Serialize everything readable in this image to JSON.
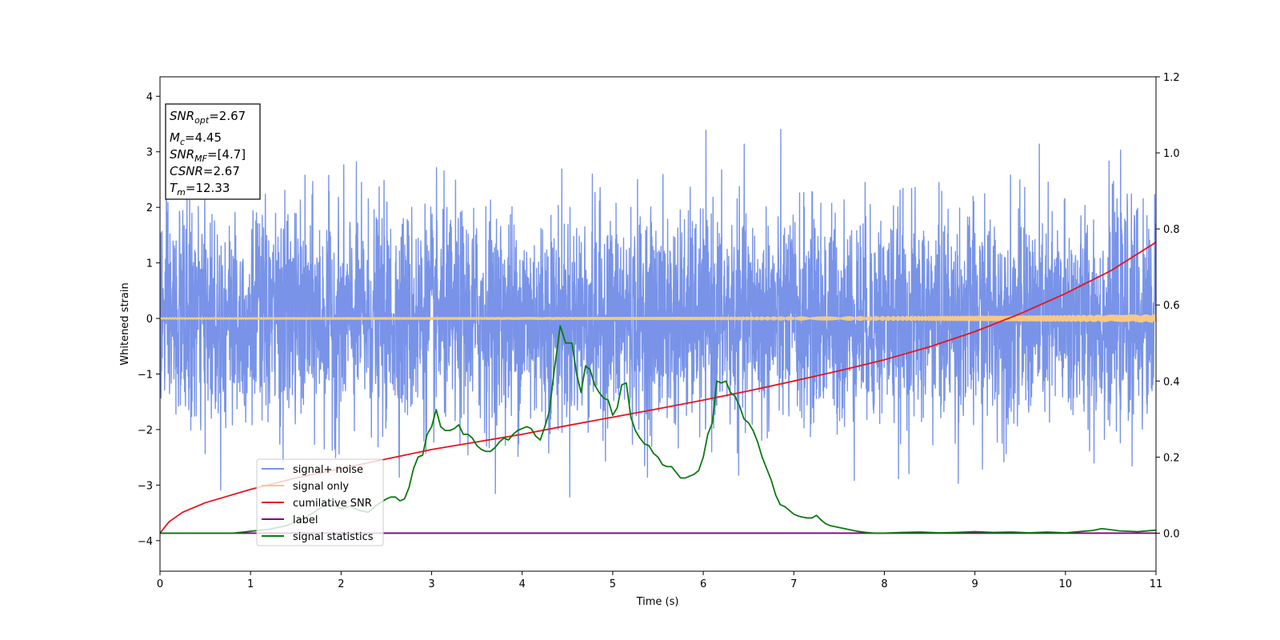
{
  "chart_data": {
    "type": "line",
    "title": "",
    "xlabel": "Time (s)",
    "ylabel": "Whitened strain",
    "y2label": "",
    "xlim": [
      0,
      11
    ],
    "ylim": [
      -4.55,
      4.35
    ],
    "y2lim": [
      -0.1,
      1.2
    ],
    "x_ticks": [
      0,
      1,
      2,
      3,
      4,
      5,
      6,
      7,
      8,
      9,
      10,
      11
    ],
    "y_ticks": [
      -4,
      -3,
      -2,
      -1,
      0,
      1,
      2,
      3,
      4
    ],
    "y2_ticks": [
      0.0,
      0.2,
      0.4,
      0.6,
      0.8,
      1.0,
      1.2
    ],
    "grid": false,
    "legend_position": "lower-left",
    "info_box": [
      {
        "sym": "SNR",
        "sub": "opt",
        "value": "=2.67"
      },
      {
        "sym": "M",
        "sub": "c",
        "value": "=4.45"
      },
      {
        "sym": "SNR",
        "sub": "MF",
        "value": "=[4.7]"
      },
      {
        "sym": "CSNR",
        "sub": "",
        "value": "=2.67"
      },
      {
        "sym": "T",
        "sub": "m",
        "value": "=12.33"
      }
    ],
    "series": [
      {
        "name": "signal+ noise",
        "color": "#7893e8",
        "axis": "left",
        "style": "noise",
        "sigma": 0.95,
        "x_range": [
          0,
          11
        ]
      },
      {
        "name": "signal only",
        "color": "#f5c987",
        "axis": "left",
        "style": "chirp",
        "amplitude_start": 0.01,
        "amplitude_end": 0.06
      },
      {
        "name": "cumilative SNR",
        "color": "#e8141c",
        "axis": "right",
        "x": [
          0,
          0.1,
          0.25,
          0.5,
          1,
          1.5,
          2,
          2.5,
          3,
          3.5,
          4,
          4.5,
          5,
          5.5,
          6,
          6.5,
          7,
          7.5,
          8,
          8.5,
          9,
          9.5,
          10,
          10.5,
          11
        ],
        "y": [
          0.0,
          0.03,
          0.055,
          0.08,
          0.115,
          0.145,
          0.17,
          0.195,
          0.22,
          0.24,
          0.26,
          0.283,
          0.305,
          0.327,
          0.35,
          0.374,
          0.4,
          0.427,
          0.456,
          0.49,
          0.53,
          0.577,
          0.63,
          0.69,
          0.765
        ]
      },
      {
        "name": "label",
        "color": "#800080",
        "axis": "right",
        "x": [
          0,
          11
        ],
        "y": [
          0.0,
          0.0
        ]
      },
      {
        "name": "signal statistics",
        "color": "#0a7a10",
        "axis": "right",
        "x": [
          0,
          0.5,
          0.8,
          1.0,
          1.2,
          1.4,
          1.6,
          1.8,
          1.9,
          2.0,
          2.1,
          2.2,
          2.3,
          2.4,
          2.5,
          2.55,
          2.6,
          2.65,
          2.7,
          2.75,
          2.8,
          2.85,
          2.9,
          2.95,
          3.0,
          3.05,
          3.1,
          3.15,
          3.2,
          3.25,
          3.3,
          3.35,
          3.4,
          3.45,
          3.5,
          3.55,
          3.6,
          3.65,
          3.7,
          3.75,
          3.8,
          3.85,
          3.9,
          3.95,
          4.0,
          4.05,
          4.1,
          4.15,
          4.2,
          4.25,
          4.3,
          4.35,
          4.42,
          4.48,
          4.55,
          4.6,
          4.65,
          4.7,
          4.75,
          4.8,
          4.85,
          4.9,
          4.95,
          5.0,
          5.05,
          5.1,
          5.15,
          5.2,
          5.25,
          5.3,
          5.35,
          5.4,
          5.45,
          5.5,
          5.55,
          5.6,
          5.65,
          5.7,
          5.75,
          5.8,
          5.85,
          5.9,
          5.95,
          6.0,
          6.05,
          6.1,
          6.15,
          6.2,
          6.25,
          6.3,
          6.35,
          6.4,
          6.45,
          6.5,
          6.55,
          6.6,
          6.65,
          6.7,
          6.75,
          6.8,
          6.85,
          6.9,
          6.95,
          7.0,
          7.05,
          7.1,
          7.15,
          7.2,
          7.25,
          7.3,
          7.35,
          7.4,
          7.5,
          7.6,
          7.7,
          7.8,
          7.9,
          8.0,
          8.2,
          8.4,
          8.6,
          8.8,
          9.0,
          9.2,
          9.4,
          9.6,
          9.8,
          10.0,
          10.2,
          10.3,
          10.4,
          10.6,
          10.8,
          11.0
        ],
        "y": [
          0.0,
          0.0,
          0.0,
          0.005,
          0.01,
          0.02,
          0.04,
          0.07,
          0.075,
          0.065,
          0.07,
          0.06,
          0.055,
          0.075,
          0.09,
          0.095,
          0.095,
          0.085,
          0.09,
          0.12,
          0.17,
          0.2,
          0.205,
          0.26,
          0.28,
          0.325,
          0.28,
          0.27,
          0.27,
          0.275,
          0.285,
          0.26,
          0.26,
          0.25,
          0.23,
          0.22,
          0.215,
          0.215,
          0.225,
          0.24,
          0.25,
          0.245,
          0.26,
          0.27,
          0.275,
          0.28,
          0.275,
          0.255,
          0.245,
          0.28,
          0.32,
          0.42,
          0.545,
          0.5,
          0.5,
          0.42,
          0.37,
          0.44,
          0.43,
          0.39,
          0.37,
          0.355,
          0.35,
          0.31,
          0.33,
          0.39,
          0.395,
          0.305,
          0.27,
          0.25,
          0.235,
          0.23,
          0.21,
          0.2,
          0.18,
          0.175,
          0.175,
          0.16,
          0.145,
          0.145,
          0.15,
          0.155,
          0.165,
          0.2,
          0.26,
          0.29,
          0.4,
          0.395,
          0.4,
          0.37,
          0.36,
          0.335,
          0.3,
          0.29,
          0.27,
          0.24,
          0.2,
          0.17,
          0.14,
          0.1,
          0.075,
          0.07,
          0.06,
          0.05,
          0.045,
          0.042,
          0.04,
          0.04,
          0.047,
          0.035,
          0.025,
          0.02,
          0.015,
          0.01,
          0.005,
          0.002,
          0.0,
          0.0,
          0.002,
          0.003,
          0.001,
          0.002,
          0.004,
          0.002,
          0.003,
          0.001,
          0.003,
          0.001,
          0.005,
          0.007,
          0.012,
          0.006,
          0.004,
          0.008
        ]
      }
    ]
  }
}
